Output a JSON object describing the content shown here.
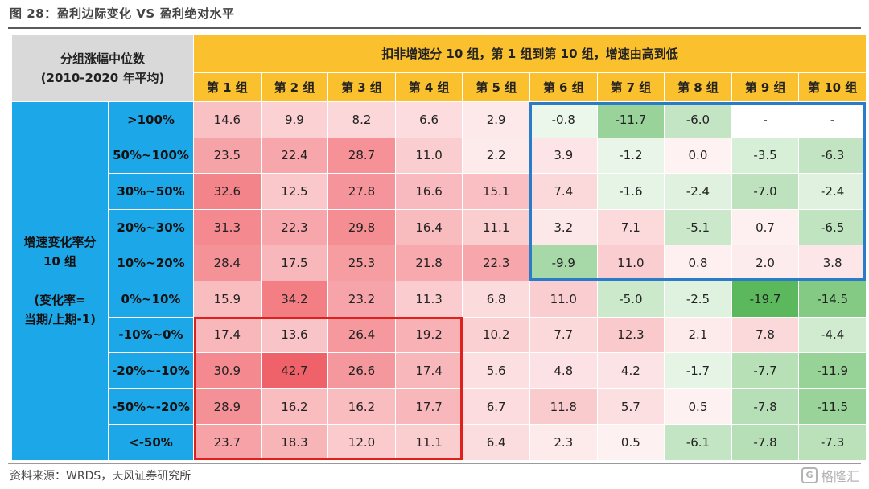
{
  "figure_title": "图 28：盈利边际变化 VS 盈利绝对水平",
  "source": "资料来源：WRDS，天风证券研究所",
  "watermark": "格隆汇",
  "colors": {
    "header_yellow": "#fbc02d",
    "row_blue": "#1ca8e8",
    "corner_gray": "#d9d9d9",
    "positive_red": "#f0626a",
    "negative_green": "#5cb85c",
    "box_blue": "#2a7bc8",
    "box_red": "#e0201c"
  },
  "chart_data": {
    "type": "heatmap",
    "corner_label": "分组涨幅中位数\n(2010-2020 年平均)",
    "column_group_title": "扣非增速分 10 组，第 1 组到第 10 组，增速由高到低",
    "columns": [
      "第 1 组",
      "第 2 组",
      "第 3 组",
      "第 4 组",
      "第 5 组",
      "第 6 组",
      "第 7 组",
      "第 8 组",
      "第 9 组",
      "第 10 组"
    ],
    "row_group_title": "增速变化率分\n10 组\n\n(变化率=\n当期/上期-1)",
    "rows": [
      ">100%",
      "50%~100%",
      "30%~50%",
      "20%~30%",
      "10%~20%",
      "0%~10%",
      "-10%~0%",
      "-20%~-10%",
      "-50%~-20%",
      "<-50%"
    ],
    "values": [
      [
        14.6,
        9.9,
        8.2,
        6.6,
        2.9,
        -0.8,
        -11.7,
        -6.0,
        null,
        null
      ],
      [
        23.5,
        22.4,
        28.7,
        11.0,
        2.2,
        3.9,
        -1.2,
        0.0,
        -3.5,
        -6.3
      ],
      [
        32.6,
        12.5,
        27.8,
        16.6,
        15.1,
        7.4,
        -1.6,
        -2.4,
        -7.0,
        -2.4
      ],
      [
        31.3,
        22.3,
        29.8,
        16.4,
        11.1,
        3.2,
        7.1,
        -5.1,
        0.7,
        -6.5
      ],
      [
        28.4,
        17.5,
        25.3,
        21.8,
        22.3,
        -9.9,
        11.0,
        0.8,
        2.0,
        3.8
      ],
      [
        15.9,
        34.2,
        23.2,
        11.3,
        6.8,
        11.0,
        -5.0,
        -2.5,
        -19.7,
        -14.5
      ],
      [
        17.4,
        13.6,
        26.4,
        19.2,
        10.2,
        7.7,
        12.3,
        2.1,
        7.8,
        -4.4
      ],
      [
        30.9,
        42.7,
        26.6,
        17.4,
        5.6,
        4.8,
        4.2,
        -1.7,
        -7.7,
        -11.9
      ],
      [
        28.9,
        16.2,
        16.2,
        17.7,
        6.7,
        11.8,
        5.7,
        0.5,
        -7.8,
        -11.5
      ],
      [
        23.7,
        18.3,
        12.0,
        11.1,
        6.4,
        2.3,
        0.5,
        -6.1,
        -7.8,
        -7.3
      ]
    ],
    "missing_label": "-",
    "highlights": [
      {
        "color": "blue",
        "rows": [
          0,
          4
        ],
        "cols": [
          5,
          9
        ]
      },
      {
        "color": "red",
        "rows": [
          6,
          9
        ],
        "cols": [
          0,
          3
        ]
      }
    ]
  }
}
